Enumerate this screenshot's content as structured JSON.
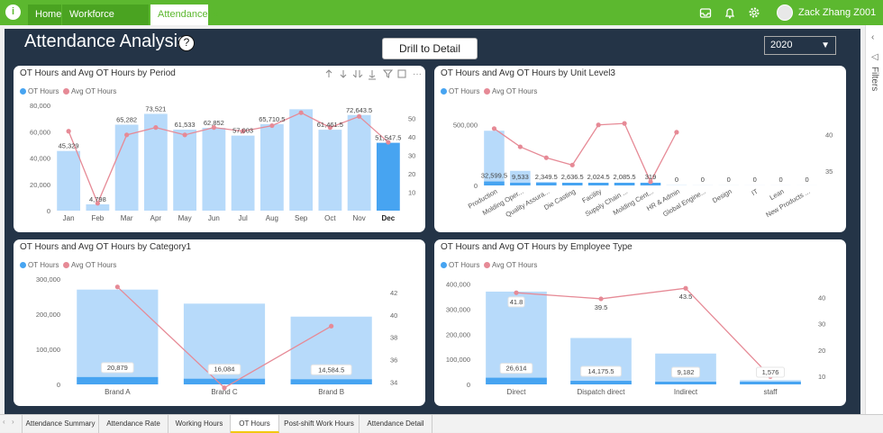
{
  "topbar": {
    "logo": "i",
    "tabs": [
      {
        "label": "Home"
      },
      {
        "label": "Workforce Analytics",
        "close": "×"
      },
      {
        "label": "Attendance",
        "close": "×"
      }
    ],
    "user": "Zack Zhang  Z001"
  },
  "report": {
    "title": "Attendance Analysis",
    "help": "?",
    "drill_button": "Drill to Detail",
    "year": "2020"
  },
  "filters_label": "Filters",
  "legend": {
    "s1": "OT Hours",
    "s2": "Avg  OT Hours"
  },
  "colors": {
    "bar": "#b7dafa",
    "bar_dark": "#47a4f1",
    "line": "#e68a96",
    "bg": "#243447",
    "accent": "#5cb82f"
  },
  "chart_data": [
    {
      "type": "bar",
      "title": "OT Hours and Avg  OT Hours by Period",
      "categories": [
        "Jan",
        "Feb",
        "Mar",
        "Apr",
        "May",
        "Jun",
        "Jul",
        "Aug",
        "Sep",
        "Oct",
        "Nov",
        "Dec"
      ],
      "series": [
        {
          "name": "OT Hours",
          "values": [
            45329,
            4798,
            65282,
            73521,
            61533,
            62852,
            57003,
            65710.5,
            77000,
            61461.5,
            72643.5,
            51547.5
          ]
        },
        {
          "name": "Avg  OT Hours",
          "values": [
            43,
            4,
            41,
            45,
            41,
            45,
            43,
            46,
            53,
            45,
            51,
            37
          ]
        }
      ],
      "labels": [
        "45,329",
        "4,798",
        "65,282",
        "73,521",
        "61,533",
        "62,852",
        "57,003",
        "65,710.5",
        "",
        "61,461.5",
        "72,643.5",
        "51,547.5"
      ],
      "highlight": "Dec",
      "y_ticks": [
        "0",
        "20,000",
        "40,000",
        "60,000",
        "80,000"
      ],
      "ylim": [
        0,
        80000
      ],
      "y2_ticks": [
        "10",
        "20",
        "30",
        "40",
        "50"
      ],
      "y2lim": [
        0,
        57
      ]
    },
    {
      "type": "bar",
      "title": "OT Hours and Avg  OT Hours by Unit Level3",
      "categories": [
        "Production",
        "Molding Oper...",
        "Quality Assura...",
        "Die Casting",
        "Facility",
        "Supply Chain ...",
        "Molding Cent...",
        "HR & Admin",
        "Global Engine...",
        "Design",
        "IT",
        "Lean",
        "New Products ..."
      ],
      "series": [
        {
          "name": "OT Hours",
          "values": [
            450000,
            120000,
            30000,
            22000,
            18000,
            20000,
            9000,
            2000,
            1000,
            700,
            600,
            500,
            400
          ]
        },
        {
          "name": "Avg  OT Hours",
          "values": [
            40.8,
            38.3,
            36.8,
            35.8,
            41.3,
            41.5,
            33.5,
            40.3,
            null,
            null,
            null,
            null,
            null
          ]
        }
      ],
      "inner_values": [
        32599.5,
        9533,
        2349.5,
        2636.5,
        2024.5,
        2085.5,
        319,
        0,
        0,
        0,
        0,
        0,
        0
      ],
      "labels": [
        "32,599.5",
        "9,533",
        "2,349.5",
        "2,636.5",
        "2,024.5",
        "2,085.5",
        "319",
        "0",
        "0",
        "0",
        "0",
        "0",
        "0"
      ],
      "y_ticks": [
        "0",
        "500,000"
      ],
      "ylim": [
        0,
        600000
      ],
      "y2_ticks": [
        "35",
        "40"
      ],
      "y2lim": [
        33,
        43
      ]
    },
    {
      "type": "bar",
      "title": "OT Hours and Avg  OT Hours by Category1",
      "categories": [
        "Brand A",
        "Brand C",
        "Brand B"
      ],
      "series": [
        {
          "name": "OT Hours",
          "values": [
            270000,
            230000,
            193000
          ]
        },
        {
          "name": "Avg  OT Hours",
          "values": [
            42.5,
            33.5,
            39
          ]
        }
      ],
      "inner_values": [
        20879,
        16084,
        14584.5
      ],
      "labels": [
        "20,879",
        "16,084",
        "14,584.5"
      ],
      "y_ticks": [
        "0",
        "100,000",
        "200,000",
        "300,000"
      ],
      "ylim": [
        0,
        300000
      ],
      "y2_ticks": [
        "34",
        "36",
        "38",
        "40",
        "42"
      ],
      "y2lim": [
        33.8,
        43.2
      ]
    },
    {
      "type": "bar",
      "title": "OT Hours and Avg  OT Hours by Employee Type",
      "categories": [
        "Direct",
        "Dispatch direct",
        "Indirect",
        "staff"
      ],
      "series": [
        {
          "name": "OT Hours",
          "values": [
            370000,
            185000,
            123000,
            17000
          ]
        },
        {
          "name": "Avg  OT Hours",
          "values": [
            41.8,
            39.5,
            43.5,
            10
          ]
        }
      ],
      "inner_values": [
        26614,
        14175.5,
        9182,
        1576
      ],
      "labels": [
        "26,614",
        "14,175.5",
        "9,182",
        "1,576"
      ],
      "line_labels": [
        "41.8",
        "39.5",
        "43.5",
        ""
      ],
      "y_ticks": [
        "0",
        "100,000",
        "200,000",
        "300,000",
        "400,000"
      ],
      "ylim": [
        0,
        420000
      ],
      "y2_ticks": [
        "10",
        "20",
        "30",
        "40"
      ],
      "y2lim": [
        7,
        47
      ]
    }
  ],
  "bottom_tabs": [
    {
      "label": "Attendance Summary"
    },
    {
      "label": "Attendance Rate"
    },
    {
      "label": "Working Hours"
    },
    {
      "label": "OT Hours",
      "active": true
    },
    {
      "label": "Post-shift Work Hours"
    },
    {
      "label": "Attendance Detail"
    }
  ]
}
